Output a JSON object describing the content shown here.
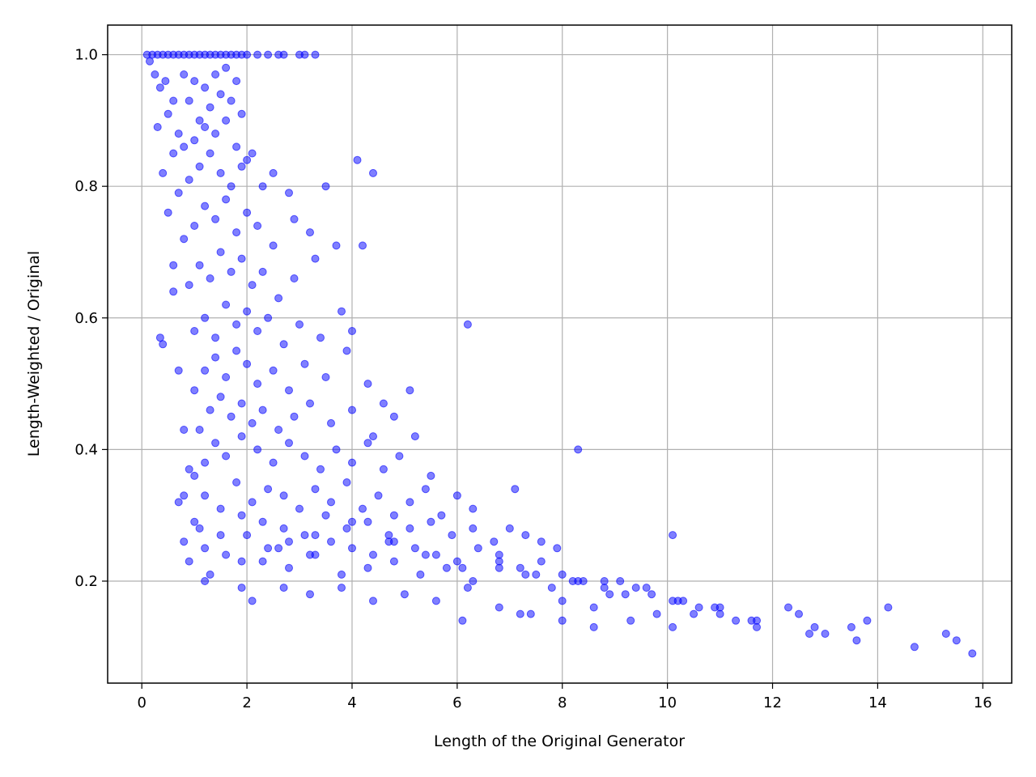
{
  "chart_data": {
    "type": "scatter",
    "title": "",
    "xlabel": "Length of the Original Generator",
    "ylabel": "Length-Weighted / Original",
    "xlim": [
      -0.65,
      16.55
    ],
    "ylim": [
      0.045,
      1.045
    ],
    "x_ticks": [
      0,
      2,
      4,
      6,
      8,
      10,
      12,
      14,
      16
    ],
    "y_ticks": [
      0.2,
      0.4,
      0.6,
      0.8,
      1.0
    ],
    "x_tick_labels": [
      "0",
      "2",
      "4",
      "6",
      "8",
      "10",
      "12",
      "14",
      "16"
    ],
    "y_tick_labels": [
      "0.2",
      "0.4",
      "0.6",
      "0.8",
      "1.0"
    ],
    "grid": true,
    "legend": "none",
    "marker_color": "#0000ff",
    "marker_alpha": 0.5,
    "series": [
      {
        "x": [
          0.1,
          0.2,
          0.3,
          0.4,
          0.5,
          0.6,
          0.7,
          0.8,
          0.9,
          1.0,
          1.1,
          1.2,
          1.3,
          1.4,
          1.5,
          1.6,
          1.7,
          1.8,
          1.9,
          2.0,
          2.2,
          2.4,
          2.6,
          2.7,
          3.0,
          3.1,
          3.3,
          0.15,
          0.25,
          0.35,
          0.45,
          0.6,
          0.8,
          1.0,
          1.2,
          1.4,
          1.6,
          1.8,
          0.3,
          0.5,
          0.7,
          0.9,
          1.1,
          1.3,
          1.5,
          1.7,
          1.9,
          0.4,
          0.6,
          0.8,
          1.0,
          1.2,
          1.4,
          1.6,
          1.8,
          2.0,
          0.5,
          0.7,
          0.9,
          1.1,
          1.3,
          1.5,
          1.7,
          1.9,
          2.1,
          2.3,
          2.5,
          2.8,
          0.6,
          0.8,
          1.0,
          1.2,
          1.4,
          1.6,
          1.8,
          2.0,
          2.2,
          2.5,
          2.9,
          3.2,
          3.5,
          0.4,
          0.6,
          0.9,
          1.1,
          1.3,
          1.5,
          1.7,
          1.9,
          2.1,
          2.3,
          2.6,
          2.9,
          3.3,
          3.7,
          4.1,
          4.2,
          4.4,
          0.7,
          1.0,
          1.2,
          1.4,
          1.6,
          1.8,
          2.0,
          2.2,
          2.4,
          2.7,
          3.0,
          3.4,
          3.8,
          4.0,
          0.8,
          1.0,
          1.2,
          1.4,
          1.6,
          1.8,
          2.0,
          2.2,
          2.5,
          2.8,
          3.1,
          3.5,
          3.9,
          4.3,
          4.6,
          6.2,
          0.35,
          0.9,
          1.1,
          1.3,
          1.5,
          1.7,
          1.9,
          2.1,
          2.3,
          2.6,
          2.9,
          3.2,
          3.6,
          4.0,
          4.4,
          4.8,
          5.1,
          0.8,
          1.0,
          1.2,
          1.4,
          1.6,
          1.9,
          2.2,
          2.5,
          2.8,
          3.1,
          3.4,
          3.7,
          4.0,
          4.3,
          4.6,
          4.9,
          5.2,
          5.5,
          0.7,
          1.0,
          1.2,
          1.5,
          1.8,
          2.1,
          2.4,
          2.7,
          3.0,
          3.3,
          3.6,
          3.9,
          4.2,
          4.5,
          4.8,
          5.1,
          5.4,
          5.7,
          6.0,
          6.3,
          7.1,
          8.3,
          0.8,
          1.1,
          1.5,
          1.9,
          2.3,
          2.7,
          3.1,
          3.5,
          3.9,
          4.3,
          4.7,
          5.1,
          5.5,
          5.9,
          6.3,
          6.7,
          7.0,
          7.3,
          7.6,
          7.9,
          0.9,
          1.2,
          1.6,
          2.0,
          2.4,
          2.8,
          3.2,
          3.6,
          4.0,
          4.4,
          4.8,
          5.2,
          5.6,
          6.0,
          6.4,
          6.8,
          7.2,
          7.6,
          8.0,
          8.4,
          8.8,
          1.3,
          1.9,
          2.3,
          2.8,
          3.3,
          3.8,
          4.3,
          4.8,
          5.3,
          5.8,
          6.3,
          6.8,
          7.3,
          7.8,
          8.3,
          8.8,
          9.1,
          9.4,
          9.7,
          10.1,
          10.9,
          1.2,
          2.1,
          2.7,
          3.2,
          3.8,
          4.4,
          5.0,
          5.6,
          6.2,
          6.8,
          7.4,
          8.0,
          8.6,
          9.2,
          9.8,
          10.2,
          10.6,
          11.0,
          11.6,
          12.3,
          1.9,
          2.6,
          3.3,
          4.0,
          4.7,
          5.4,
          6.1,
          6.8,
          7.5,
          8.2,
          8.9,
          9.6,
          10.3,
          11.0,
          11.7,
          12.5,
          13.0,
          13.5,
          13.8,
          14.2,
          6.1,
          7.2,
          8.0,
          8.6,
          9.3,
          10.1,
          10.5,
          11.3,
          11.7,
          12.7,
          12.8,
          13.6,
          14.7,
          15.3,
          15.5,
          15.8,
          10.1
        ],
        "y": [
          1.0,
          1.0,
          1.0,
          1.0,
          1.0,
          1.0,
          1.0,
          1.0,
          1.0,
          1.0,
          1.0,
          1.0,
          1.0,
          1.0,
          1.0,
          1.0,
          1.0,
          1.0,
          1.0,
          1.0,
          1.0,
          1.0,
          1.0,
          1.0,
          1.0,
          1.0,
          1.0,
          0.99,
          0.97,
          0.95,
          0.96,
          0.93,
          0.97,
          0.96,
          0.95,
          0.97,
          0.98,
          0.96,
          0.89,
          0.91,
          0.88,
          0.93,
          0.9,
          0.92,
          0.94,
          0.93,
          0.91,
          0.82,
          0.85,
          0.86,
          0.87,
          0.89,
          0.88,
          0.9,
          0.86,
          0.84,
          0.76,
          0.79,
          0.81,
          0.83,
          0.85,
          0.82,
          0.8,
          0.83,
          0.85,
          0.8,
          0.82,
          0.79,
          0.68,
          0.72,
          0.74,
          0.77,
          0.75,
          0.78,
          0.73,
          0.76,
          0.74,
          0.71,
          0.75,
          0.73,
          0.8,
          0.56,
          0.64,
          0.65,
          0.68,
          0.66,
          0.7,
          0.67,
          0.69,
          0.65,
          0.67,
          0.63,
          0.66,
          0.69,
          0.71,
          0.84,
          0.71,
          0.82,
          0.52,
          0.58,
          0.6,
          0.57,
          0.62,
          0.59,
          0.61,
          0.58,
          0.6,
          0.56,
          0.59,
          0.57,
          0.61,
          0.58,
          0.43,
          0.49,
          0.52,
          0.54,
          0.51,
          0.55,
          0.53,
          0.5,
          0.52,
          0.49,
          0.53,
          0.51,
          0.55,
          0.5,
          0.47,
          0.59,
          0.57,
          0.37,
          0.43,
          0.46,
          0.48,
          0.45,
          0.47,
          0.44,
          0.46,
          0.43,
          0.45,
          0.47,
          0.44,
          0.46,
          0.42,
          0.45,
          0.49,
          0.33,
          0.36,
          0.38,
          0.41,
          0.39,
          0.42,
          0.4,
          0.38,
          0.41,
          0.39,
          0.37,
          0.4,
          0.38,
          0.41,
          0.37,
          0.39,
          0.42,
          0.36,
          0.32,
          0.29,
          0.33,
          0.31,
          0.35,
          0.32,
          0.34,
          0.33,
          0.31,
          0.34,
          0.32,
          0.35,
          0.31,
          0.33,
          0.3,
          0.32,
          0.34,
          0.3,
          0.33,
          0.31,
          0.34,
          0.4,
          0.26,
          0.28,
          0.27,
          0.3,
          0.29,
          0.28,
          0.27,
          0.3,
          0.28,
          0.29,
          0.27,
          0.28,
          0.29,
          0.27,
          0.28,
          0.26,
          0.28,
          0.27,
          0.26,
          0.25,
          0.23,
          0.25,
          0.24,
          0.27,
          0.25,
          0.26,
          0.24,
          0.26,
          0.25,
          0.24,
          0.26,
          0.25,
          0.24,
          0.23,
          0.25,
          0.24,
          0.22,
          0.23,
          0.21,
          0.2,
          0.2,
          0.21,
          0.19,
          0.23,
          0.22,
          0.24,
          0.21,
          0.22,
          0.23,
          0.21,
          0.22,
          0.2,
          0.22,
          0.21,
          0.19,
          0.2,
          0.19,
          0.2,
          0.19,
          0.18,
          0.17,
          0.16,
          0.2,
          0.17,
          0.19,
          0.18,
          0.19,
          0.17,
          0.18,
          0.17,
          0.19,
          0.16,
          0.15,
          0.17,
          0.16,
          0.18,
          0.15,
          0.17,
          0.16,
          0.15,
          0.14,
          0.16,
          0.23,
          0.25,
          0.27,
          0.29,
          0.26,
          0.24,
          0.22,
          0.23,
          0.21,
          0.2,
          0.18,
          0.19,
          0.17,
          0.16,
          0.14,
          0.15,
          0.12,
          0.13,
          0.14,
          0.16,
          0.14,
          0.15,
          0.14,
          0.13,
          0.14,
          0.13,
          0.15,
          0.14,
          0.13,
          0.12,
          0.13,
          0.11,
          0.1,
          0.12,
          0.11,
          0.09,
          0.27
        ]
      }
    ]
  }
}
